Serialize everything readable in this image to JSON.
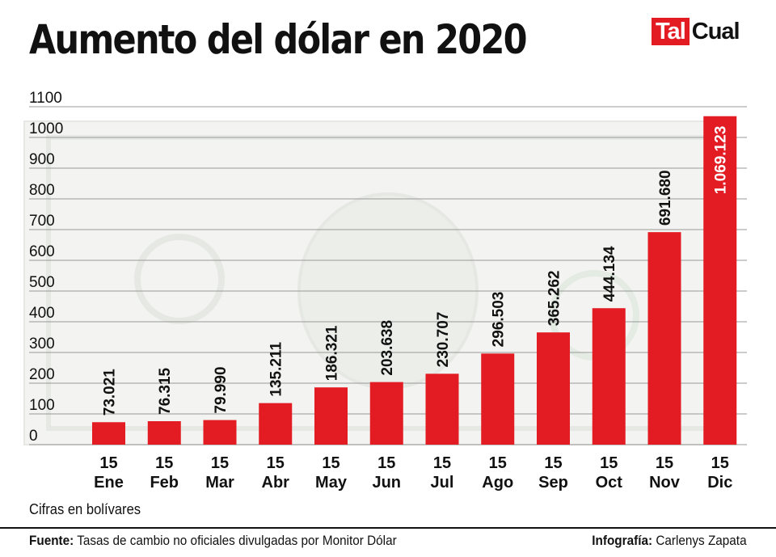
{
  "header": {
    "title": "Aumento del dólar en 2020",
    "logo_text_part1": "Tal",
    "logo_text_part2": "Cual"
  },
  "footer": {
    "source_label": "Fuente:",
    "source_text": "Tasas de cambio no oficiales divulgadas por Monitor Dólar",
    "credit_label": "Infografía:",
    "credit_text": "Carlenys Zapata"
  },
  "colors": {
    "bar": "#e31b23",
    "grid": "#999999",
    "background_art": "#e6e8e4"
  },
  "chart_data": {
    "type": "bar",
    "title": "Aumento del dólar en 2020",
    "units_note": "Cifras en bolívares",
    "xlabel": "",
    "ylabel": "",
    "ylim": [
      0,
      1100
    ],
    "yticks": [
      0,
      100,
      200,
      300,
      400,
      500,
      600,
      700,
      800,
      900,
      1000,
      1100
    ],
    "grid": true,
    "background_illustration": "one-dollar-bill",
    "categories": [
      {
        "day": "15",
        "month": "Ene"
      },
      {
        "day": "15",
        "month": "Feb"
      },
      {
        "day": "15",
        "month": "Mar"
      },
      {
        "day": "15",
        "month": "Abr"
      },
      {
        "day": "15",
        "month": "May"
      },
      {
        "day": "15",
        "month": "Jun"
      },
      {
        "day": "15",
        "month": "Jul"
      },
      {
        "day": "15",
        "month": "Ago"
      },
      {
        "day": "15",
        "month": "Sep"
      },
      {
        "day": "15",
        "month": "Oct"
      },
      {
        "day": "15",
        "month": "Nov"
      },
      {
        "day": "15",
        "month": "Dic"
      }
    ],
    "values": [
      73021,
      76315,
      79990,
      135211,
      186321,
      203638,
      230707,
      296503,
      365262,
      444134,
      691680,
      1069123
    ],
    "value_labels": [
      "73.021",
      "76.315",
      "79.990",
      "135.211",
      "186.321",
      "203.638",
      "230.707",
      "296.503",
      "365.262",
      "444.134",
      "691.680",
      "1.069.123"
    ],
    "axis_unit_scale": 1000
  }
}
